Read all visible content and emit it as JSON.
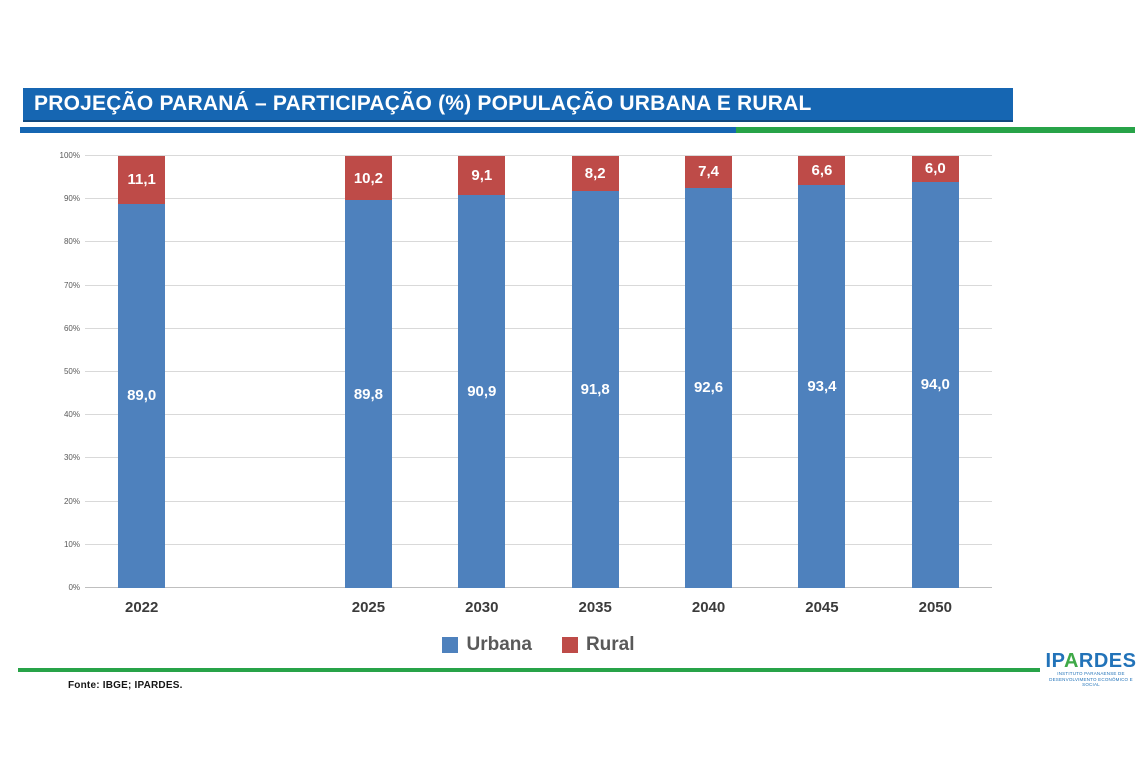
{
  "header": {
    "title": "PROJEÇÃO PARANÁ – PARTICIPAÇÃO (%) POPULAÇÃO URBANA E RURAL",
    "title_bar_color": "#1666B2",
    "accent_green": "#28A348"
  },
  "chart_data": {
    "type": "bar",
    "stacked": true,
    "categories": [
      "2022",
      "2025",
      "2030",
      "2035",
      "2040",
      "2045",
      "2050"
    ],
    "series": [
      {
        "name": "Urbana",
        "color": "#4E81BD",
        "values": [
          89.0,
          89.8,
          90.9,
          91.8,
          92.6,
          93.4,
          94.0
        ],
        "labels": [
          "89,0",
          "89,8",
          "90,9",
          "91,8",
          "92,6",
          "93,4",
          "94,0"
        ]
      },
      {
        "name": "Rural",
        "color": "#BE4B48",
        "values": [
          11.1,
          10.2,
          9.1,
          8.2,
          7.4,
          6.6,
          6.0
        ],
        "labels": [
          "11,1",
          "10,2",
          "9,1",
          "8,2",
          "7,4",
          "6,6",
          "6,0"
        ]
      }
    ],
    "y_ticks": [
      "0%",
      "10%",
      "20%",
      "30%",
      "40%",
      "50%",
      "60%",
      "70%",
      "80%",
      "90%",
      "100%"
    ],
    "ylim": [
      0,
      100
    ],
    "grid": "horizontal",
    "gridline_color": "#D9D9D9",
    "axis_label_color": "#595959",
    "slot_count": 8,
    "slot_positions": [
      0,
      2,
      3,
      4,
      5,
      6,
      7
    ],
    "legend_position": "bottom"
  },
  "footer": {
    "source": "Fonte: IBGE; IPARDES.",
    "logo": {
      "prefix": "IP",
      "a": "A",
      "suffix": "RDES",
      "tagline_line1": "INSTITUTO PARANAENSE DE",
      "tagline_line2": "DESENVOLVIMENTO ECONÔMICO E SOCIAL",
      "blue": "#2273B9",
      "green": "#3FA948"
    }
  }
}
